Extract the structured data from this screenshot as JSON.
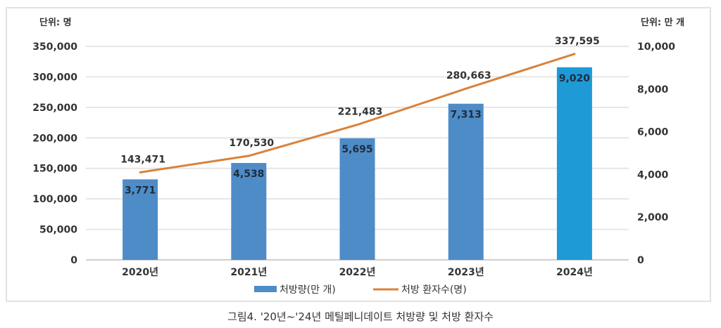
{
  "chart_data": {
    "type": "bar+line",
    "categories": [
      "2020년",
      "2021년",
      "2022년",
      "2023년",
      "2024년"
    ],
    "series": [
      {
        "name": "처방량(만 개)",
        "type": "bar",
        "axis": "right",
        "values": [
          3771,
          4538,
          5695,
          7313,
          9020
        ],
        "labels": [
          "3,771",
          "4,538",
          "5,695",
          "7,313",
          "9,020"
        ],
        "color": "#4e8cc7",
        "highlight_color": "#1e9ad6"
      },
      {
        "name": "처방 환자수(명)",
        "type": "line",
        "axis": "left",
        "values": [
          143471,
          170530,
          221483,
          280663,
          337595
        ],
        "labels": [
          "143,471",
          "170,530",
          "221,483",
          "280,663",
          "337,595"
        ],
        "color": "#d9823b"
      }
    ],
    "left_axis": {
      "unit_label": "단위: 명",
      "ylim": [
        0,
        350000
      ],
      "ticks": [
        "0",
        "50,000",
        "100,000",
        "150,000",
        "200,000",
        "250,000",
        "300,000",
        "350,000"
      ]
    },
    "right_axis": {
      "unit_label": "단위: 만 개",
      "ylim": [
        0,
        10000
      ],
      "ticks": [
        "0",
        "2,000",
        "4,000",
        "6,000",
        "8,000",
        "10,000"
      ]
    },
    "grid": true,
    "legend_placement": "bottom",
    "title": "그림4. '20년~'24년 메틸페니데이트 처방량 및 처방 환자수"
  }
}
